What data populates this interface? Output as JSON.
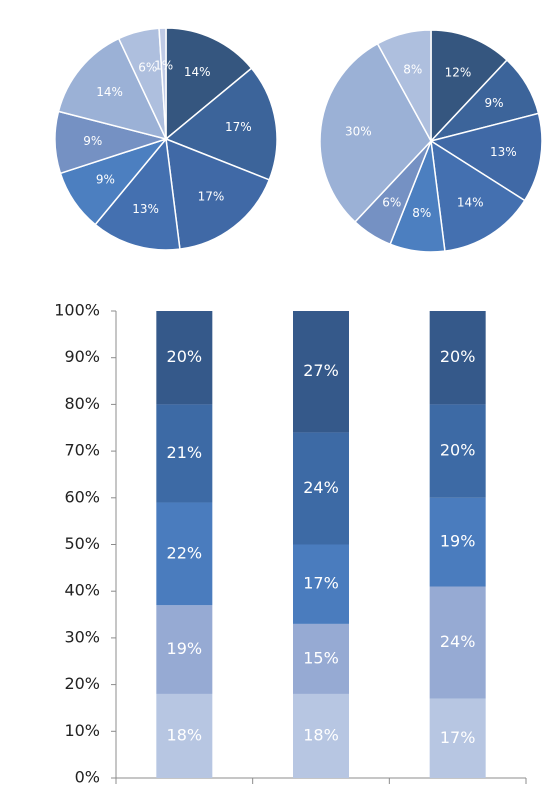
{
  "chart_data": [
    {
      "type": "pie",
      "values": [
        14,
        17,
        17,
        13,
        9,
        9,
        14,
        6,
        1
      ],
      "labels": [
        "14%",
        "17%",
        "17%",
        "13%",
        "9%",
        "9%",
        "14%",
        "6%",
        "1%"
      ],
      "colors": [
        "#35567f",
        "#3c649a",
        "#4069a6",
        "#4470b0",
        "#4c7fc0",
        "#7591c3",
        "#9bb1d6",
        "#aebfde",
        "#c0cbe6"
      ]
    },
    {
      "type": "pie",
      "values": [
        12,
        9,
        13,
        14,
        8,
        6,
        30,
        8
      ],
      "labels": [
        "12%",
        "9%",
        "13%",
        "14%",
        "8%",
        "6%",
        "30%",
        "8%"
      ],
      "colors": [
        "#35567f",
        "#3c649a",
        "#4069a6",
        "#4470b0",
        "#4c7fc0",
        "#7591c3",
        "#9bb1d6",
        "#aebfde"
      ]
    },
    {
      "type": "bar",
      "stacked": true,
      "categories": [
        "",
        "",
        ""
      ],
      "y_ticks": [
        "0%",
        "10%",
        "20%",
        "30%",
        "40%",
        "50%",
        "60%",
        "70%",
        "80%",
        "90%",
        "100%"
      ],
      "ylim": [
        0,
        100
      ],
      "series": [
        {
          "values": [
            18,
            18,
            17
          ],
          "labels": [
            "18%",
            "18%",
            "17%"
          ],
          "color": "#b7c6e2"
        },
        {
          "values": [
            19,
            15,
            24
          ],
          "labels": [
            "19%",
            "15%",
            "24%"
          ],
          "color": "#96aad3"
        },
        {
          "values": [
            22,
            17,
            19
          ],
          "labels": [
            "22%",
            "17%",
            "19%"
          ],
          "color": "#4a7cbe"
        },
        {
          "values": [
            21,
            24,
            20
          ],
          "labels": [
            "21%",
            "24%",
            "20%"
          ],
          "color": "#3d6aa5"
        },
        {
          "values": [
            20,
            27,
            20
          ],
          "labels": [
            "20%",
            "27%",
            "20%"
          ],
          "color": "#35598a"
        }
      ]
    }
  ]
}
